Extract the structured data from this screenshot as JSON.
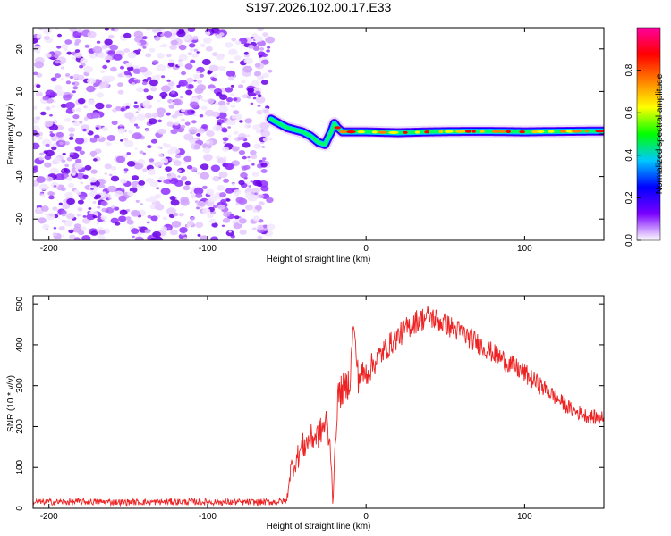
{
  "title": "S197.2026.102.00.17.E33",
  "colors": {
    "speckle": [
      "#f2e6ff",
      "#e6ccff",
      "#d1a3ff",
      "#b066ff",
      "#8f2eff",
      "#6a00e6"
    ],
    "snr_line": "#ee2222",
    "frame": "#000000"
  },
  "chart_data": [
    {
      "type": "heatmap",
      "name": "spectrogram",
      "xlabel": "Height of straight line (km)",
      "ylabel": "Frequency (Hz)",
      "xlim": [
        -210,
        150
      ],
      "ylim": [
        -25,
        25
      ],
      "xticks": [
        -200,
        -100,
        0,
        100
      ],
      "xtick_labels": [
        "-200",
        "-100",
        "0",
        "100"
      ],
      "yticks": [
        -20,
        -10,
        0,
        10,
        20
      ],
      "ytick_labels": [
        "-20",
        "-10",
        "0",
        "10",
        "20"
      ],
      "noise_region_x": [
        -210,
        -60
      ],
      "signal_track": {
        "x": [
          -60,
          -55,
          -50,
          -45,
          -40,
          -35,
          -30,
          -26,
          -22,
          -20,
          -18,
          -15,
          -10,
          0,
          20,
          40,
          60,
          80,
          100,
          120,
          150
        ],
        "freq": [
          3.5,
          2.5,
          1.5,
          1.0,
          0.5,
          -0.5,
          -2.0,
          -2.5,
          0.5,
          2.5,
          1.5,
          0.5,
          0.5,
          0.5,
          0.3,
          0.5,
          0.6,
          0.6,
          0.5,
          0.6,
          0.7
        ]
      },
      "colorbar": {
        "label": "Normalized spectral amplitude",
        "range": [
          0,
          1
        ],
        "ticks": [
          0.0,
          0.2,
          0.4,
          0.6,
          0.8
        ],
        "tick_labels": [
          "0.0",
          "0.2",
          "0.4",
          "0.6",
          "0.8"
        ],
        "colormap": [
          "#ffffff",
          "#7a00ff",
          "#0000ff",
          "#00c8ff",
          "#00ff00",
          "#ffff00",
          "#ff8000",
          "#ff0000",
          "#ff00a0"
        ]
      }
    },
    {
      "type": "line",
      "name": "snr",
      "xlabel": "Height of straight line (km)",
      "ylabel": "SNR (10 * v/v)",
      "xlim": [
        -210,
        150
      ],
      "ylim": [
        0,
        520
      ],
      "xticks": [
        -200,
        -100,
        0,
        100
      ],
      "xtick_labels": [
        "-200",
        "-100",
        "0",
        "100"
      ],
      "yticks": [
        0,
        100,
        200,
        300,
        400,
        500
      ],
      "ytick_labels": [
        "0",
        "100",
        "200",
        "300",
        "400",
        "500"
      ],
      "series": [
        {
          "name": "SNR",
          "x": [
            -210,
            -180,
            -150,
            -120,
            -90,
            -60,
            -50,
            -48,
            -44,
            -40,
            -35,
            -30,
            -25,
            -22,
            -21,
            -18,
            -15,
            -12,
            -10,
            -8,
            -5,
            0,
            10,
            20,
            30,
            40,
            50,
            60,
            80,
            100,
            120,
            130,
            140,
            150
          ],
          "y": [
            15,
            16,
            15,
            16,
            15,
            15,
            18,
            90,
            120,
            150,
            170,
            180,
            210,
            130,
            15,
            270,
            290,
            300,
            320,
            455,
            320,
            330,
            380,
            420,
            455,
            470,
            450,
            430,
            380,
            330,
            270,
            240,
            225,
            220
          ],
          "noise": [
            8,
            8,
            8,
            8,
            8,
            8,
            8,
            30,
            30,
            35,
            35,
            35,
            40,
            30,
            10,
            40,
            40,
            40,
            40,
            10,
            40,
            35,
            30,
            30,
            30,
            30,
            28,
            28,
            25,
            25,
            20,
            18,
            18,
            18
          ]
        }
      ]
    }
  ]
}
